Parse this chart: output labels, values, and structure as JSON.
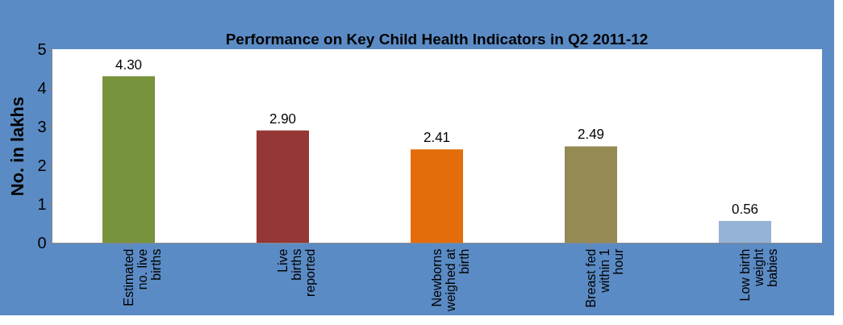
{
  "chart_data": {
    "type": "bar",
    "title": "Performance on Key Child Health Indicators in  Q2 2011-12",
    "ylabel": "No. in lakhs",
    "categories": [
      "Estimated no. live births",
      "Live births reported",
      "Newborns weighed at birth",
      "Breast fed within 1 hour",
      "Low birth weight babies"
    ],
    "values": [
      4.3,
      2.9,
      2.41,
      2.49,
      0.56
    ],
    "value_labels": [
      "4.30",
      "2.90",
      "2.41",
      "2.49",
      "0.56"
    ],
    "colors": [
      "#77933c",
      "#953735",
      "#e46c0a",
      "#948a54",
      "#95b3d7"
    ],
    "ylim": [
      0,
      5
    ],
    "yticks": [
      0,
      1,
      2,
      3,
      4,
      5
    ],
    "grid": false
  }
}
